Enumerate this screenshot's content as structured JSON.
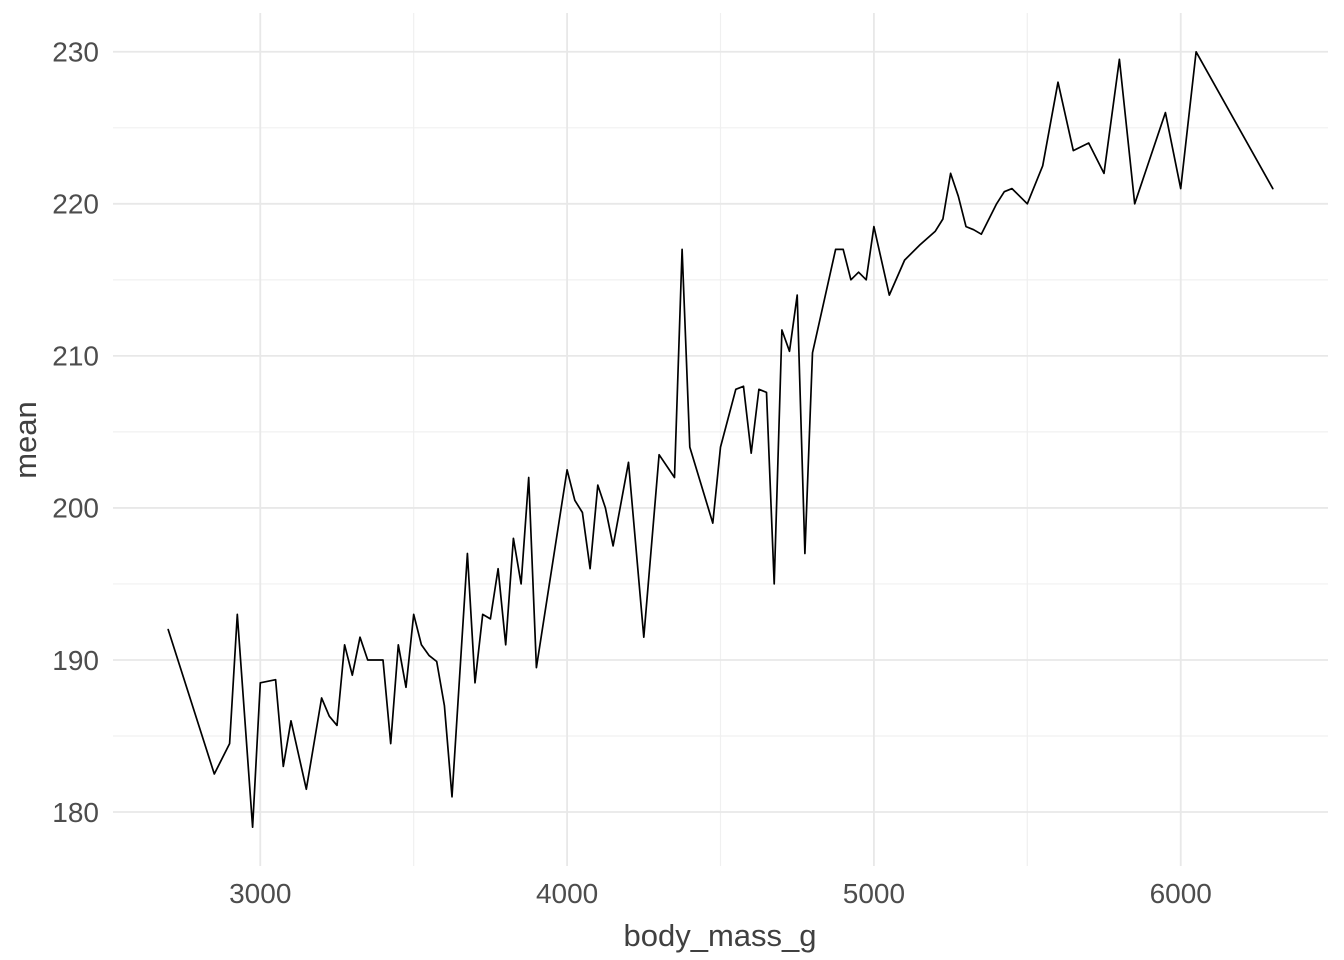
{
  "chart_data": {
    "type": "line",
    "title": "",
    "xlabel": "body_mass_g",
    "ylabel": "mean",
    "x_ticks": [
      3000,
      4000,
      5000,
      6000
    ],
    "x_tick_labels": [
      "3000",
      "4000",
      "5000",
      "6000"
    ],
    "x_minor_ticks": [
      3500,
      4500,
      5500
    ],
    "y_ticks": [
      180,
      190,
      200,
      210,
      220,
      230
    ],
    "y_tick_labels": [
      "180",
      "190",
      "200",
      "210",
      "220",
      "230"
    ],
    "y_minor_ticks": [
      185,
      195,
      205,
      215,
      225
    ],
    "xlim": [
      2520,
      6480
    ],
    "ylim": [
      176.45,
      232.55
    ],
    "grid": true,
    "legend": "none",
    "line_color": "#000000",
    "major_grid_color": "#e8e8e8",
    "minor_grid_color": "#f0f0f0",
    "tick_label_color": "#4d4d4d",
    "axis_title_color": "#404040",
    "background_color": "#ffffff",
    "points": [
      [
        2700,
        192
      ],
      [
        2850,
        182.5
      ],
      [
        2900,
        184.5
      ],
      [
        2925,
        193
      ],
      [
        2975,
        179
      ],
      [
        3000,
        188.5
      ],
      [
        3050,
        188.7
      ],
      [
        3075,
        183
      ],
      [
        3100,
        186
      ],
      [
        3150,
        181.5
      ],
      [
        3200,
        187.5
      ],
      [
        3225,
        186.3
      ],
      [
        3250,
        185.7
      ],
      [
        3275,
        191
      ],
      [
        3300,
        189
      ],
      [
        3325,
        191.5
      ],
      [
        3350,
        190
      ],
      [
        3400,
        190
      ],
      [
        3425,
        184.5
      ],
      [
        3450,
        191
      ],
      [
        3475,
        188.2
      ],
      [
        3500,
        193
      ],
      [
        3525,
        191
      ],
      [
        3550,
        190.3
      ],
      [
        3575,
        189.9
      ],
      [
        3600,
        187
      ],
      [
        3625,
        181
      ],
      [
        3675,
        197
      ],
      [
        3700,
        188.5
      ],
      [
        3725,
        193
      ],
      [
        3750,
        192.7
      ],
      [
        3775,
        196
      ],
      [
        3800,
        191
      ],
      [
        3825,
        198
      ],
      [
        3850,
        195
      ],
      [
        3875,
        202
      ],
      [
        3900,
        189.5
      ],
      [
        4000,
        202.5
      ],
      [
        4025,
        200.5
      ],
      [
        4050,
        199.7
      ],
      [
        4075,
        196
      ],
      [
        4100,
        201.5
      ],
      [
        4125,
        200
      ],
      [
        4150,
        197.5
      ],
      [
        4200,
        203
      ],
      [
        4250,
        191.5
      ],
      [
        4300,
        203.5
      ],
      [
        4350,
        202
      ],
      [
        4375,
        217
      ],
      [
        4400,
        204
      ],
      [
        4475,
        199
      ],
      [
        4500,
        204
      ],
      [
        4550,
        207.8
      ],
      [
        4575,
        208
      ],
      [
        4600,
        203.6
      ],
      [
        4625,
        207.8
      ],
      [
        4650,
        207.6
      ],
      [
        4675,
        195
      ],
      [
        4700,
        211.7
      ],
      [
        4725,
        210.3
      ],
      [
        4750,
        214
      ],
      [
        4775,
        197
      ],
      [
        4800,
        210.2
      ],
      [
        4875,
        217
      ],
      [
        4900,
        217
      ],
      [
        4925,
        215
      ],
      [
        4950,
        215.5
      ],
      [
        4975,
        215
      ],
      [
        5000,
        218.5
      ],
      [
        5050,
        214
      ],
      [
        5100,
        216.3
      ],
      [
        5150,
        217.3
      ],
      [
        5200,
        218.2
      ],
      [
        5225,
        219
      ],
      [
        5250,
        222
      ],
      [
        5275,
        220.5
      ],
      [
        5300,
        218.5
      ],
      [
        5325,
        218.3
      ],
      [
        5350,
        218
      ],
      [
        5400,
        220
      ],
      [
        5425,
        220.8
      ],
      [
        5450,
        221
      ],
      [
        5500,
        220
      ],
      [
        5550,
        222.5
      ],
      [
        5600,
        228
      ],
      [
        5650,
        223.5
      ],
      [
        5700,
        224
      ],
      [
        5750,
        222
      ],
      [
        5800,
        229.5
      ],
      [
        5850,
        220
      ],
      [
        5950,
        226
      ],
      [
        6000,
        221
      ],
      [
        6050,
        230
      ],
      [
        6300,
        221
      ]
    ]
  }
}
